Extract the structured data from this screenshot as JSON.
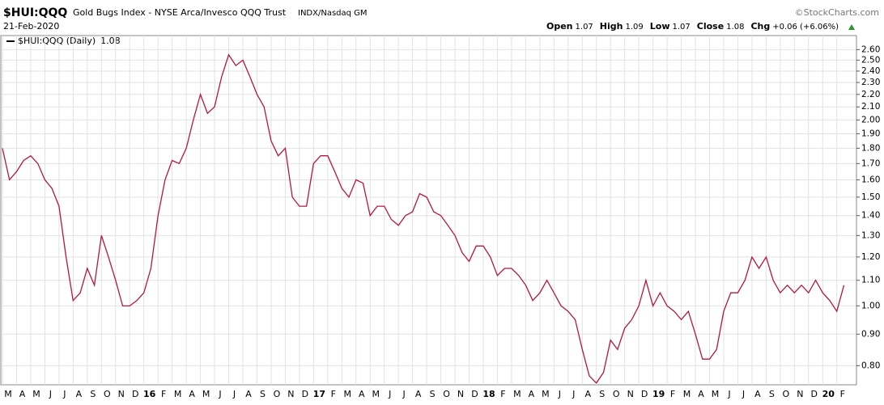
{
  "chart_data": {
    "type": "line",
    "symbol": "$HUI:QQQ",
    "title": "Gold Bugs Index - NYSE Arca/Invesco QQQ Trust",
    "exchange": "INDX/Nasdaq GM",
    "date": "21-Feb-2020",
    "source": "©StockCharts.com",
    "quote": [
      {
        "label": "Open",
        "value": "1.07"
      },
      {
        "label": "High",
        "value": "1.09"
      },
      {
        "label": "Low",
        "value": "1.07"
      },
      {
        "label": "Close",
        "value": "1.08"
      },
      {
        "label": "Chg",
        "value": "+0.06 (+6.06%)"
      }
    ],
    "categories": [
      "M",
      null,
      "A",
      null,
      "M",
      null,
      "J",
      null,
      "J",
      null,
      "A",
      null,
      "S",
      null,
      "O",
      null,
      "N",
      null,
      "D",
      null,
      "16",
      null,
      "F",
      null,
      "M",
      null,
      "A",
      null,
      "M",
      null,
      "J",
      null,
      "J",
      null,
      "A",
      null,
      "S",
      null,
      "O",
      null,
      "N",
      null,
      "D",
      null,
      "17",
      null,
      "F",
      null,
      "M",
      null,
      "A",
      null,
      "M",
      null,
      "J",
      null,
      "J",
      null,
      "A",
      null,
      "S",
      null,
      "O",
      null,
      "N",
      null,
      "D",
      null,
      "18",
      null,
      "F",
      null,
      "M",
      null,
      "A",
      null,
      "M",
      null,
      "J",
      null,
      "J",
      null,
      "A",
      null,
      "S",
      null,
      "O",
      null,
      "N",
      null,
      "D",
      null,
      "19",
      null,
      "F",
      null,
      "M",
      null,
      "A",
      null,
      "M",
      null,
      "J",
      null,
      "J",
      null,
      "A",
      null,
      "S",
      null,
      "O",
      null,
      "N",
      null,
      "D",
      null,
      "20",
      null,
      "F",
      null
    ],
    "series": [
      {
        "name": "$HUI:QQQ (Daily)",
        "color": "#b5173e",
        "values": [
          1.8,
          1.6,
          1.65,
          1.72,
          1.75,
          1.7,
          1.6,
          1.55,
          1.45,
          1.2,
          1.02,
          1.05,
          1.15,
          1.08,
          1.3,
          1.2,
          1.1,
          1.0,
          1.0,
          1.02,
          1.05,
          1.15,
          1.4,
          1.6,
          1.72,
          1.7,
          1.8,
          2.0,
          2.2,
          2.05,
          2.1,
          2.35,
          2.55,
          2.45,
          2.5,
          2.35,
          2.2,
          2.1,
          1.85,
          1.75,
          1.8,
          1.5,
          1.45,
          1.45,
          1.7,
          1.75,
          1.75,
          1.65,
          1.55,
          1.5,
          1.6,
          1.58,
          1.4,
          1.45,
          1.45,
          1.38,
          1.35,
          1.4,
          1.42,
          1.52,
          1.5,
          1.42,
          1.4,
          1.35,
          1.3,
          1.22,
          1.18,
          1.25,
          1.25,
          1.2,
          1.12,
          1.15,
          1.15,
          1.12,
          1.08,
          1.02,
          1.05,
          1.1,
          1.05,
          1.0,
          0.98,
          0.95,
          0.85,
          0.77,
          0.75,
          0.78,
          0.88,
          0.85,
          0.92,
          0.95,
          1.0,
          1.1,
          1.0,
          1.05,
          1.0,
          0.98,
          0.95,
          0.98,
          0.9,
          0.82,
          0.82,
          0.85,
          0.98,
          1.05,
          1.05,
          1.1,
          1.2,
          1.15,
          1.2,
          1.1,
          1.05,
          1.08,
          1.05,
          1.08,
          1.05,
          1.1,
          1.05,
          1.02,
          0.98,
          1.08
        ]
      }
    ],
    "log_scale": true,
    "grid": true,
    "ylim": [
      0.745,
      2.74
    ],
    "yticks": [
      {
        "value": 0.8,
        "label": "0.80"
      },
      {
        "value": 0.9,
        "label": "0.90"
      },
      {
        "value": 1,
        "label": "1.00"
      },
      {
        "value": 1.1,
        "label": "1.10"
      },
      {
        "value": 1.2,
        "label": "1.20"
      },
      {
        "value": 1.3,
        "label": "1.30"
      },
      {
        "value": 1.4,
        "label": "1.40"
      },
      {
        "value": 1.5,
        "label": "1.50"
      },
      {
        "value": 1.6,
        "label": "1.60"
      },
      {
        "value": 1.7,
        "label": "1.70"
      },
      {
        "value": 1.8,
        "label": "1.80"
      },
      {
        "value": 1.9,
        "label": "1.90"
      },
      {
        "value": 2,
        "label": "2.00"
      },
      {
        "value": 2.1,
        "label": "2.10"
      },
      {
        "value": 2.2,
        "label": "2.20"
      },
      {
        "value": 2.3,
        "label": "2.30"
      },
      {
        "value": 2.4,
        "label": "2.40"
      },
      {
        "value": 2.5,
        "label": "2.50"
      },
      {
        "value": 2.6,
        "label": "2.60"
      }
    ]
  }
}
